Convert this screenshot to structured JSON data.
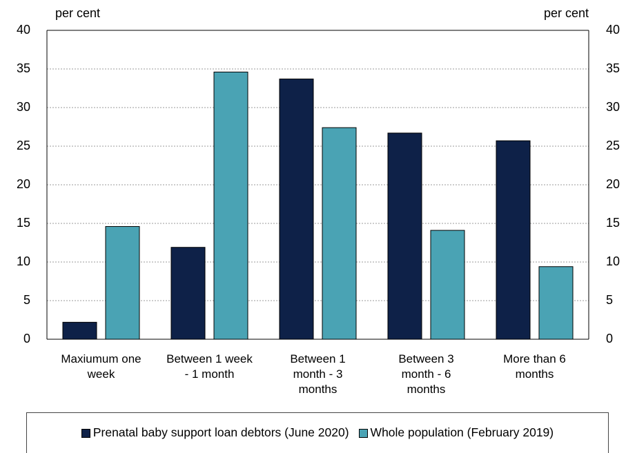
{
  "chart_data": {
    "type": "bar",
    "ylabel": "per cent",
    "y2label": "per cent",
    "categories": [
      "Maxiumum one week",
      "Between 1 week - 1 month",
      "Between 1 month - 3 months",
      "Between 3 month - 6 months",
      "More than 6 months"
    ],
    "series": [
      {
        "name": "Prenatal baby support loan debtors (June 2020)",
        "color": "#0e2148",
        "values": [
          2.2,
          11.9,
          33.7,
          26.7,
          25.7
        ]
      },
      {
        "name": "Whole population (February 2019)",
        "color": "#4aa3b4",
        "values": [
          14.6,
          34.6,
          27.4,
          14.1,
          9.4
        ]
      }
    ],
    "ylim": [
      0,
      40
    ],
    "yticks": [
      0,
      5,
      10,
      15,
      20,
      25,
      30,
      35,
      40
    ],
    "y2lim": [
      0,
      40
    ],
    "y2ticks": [
      0,
      5,
      10,
      15,
      20,
      25,
      30,
      35,
      40
    ],
    "grid": true,
    "legend": "bottom"
  }
}
